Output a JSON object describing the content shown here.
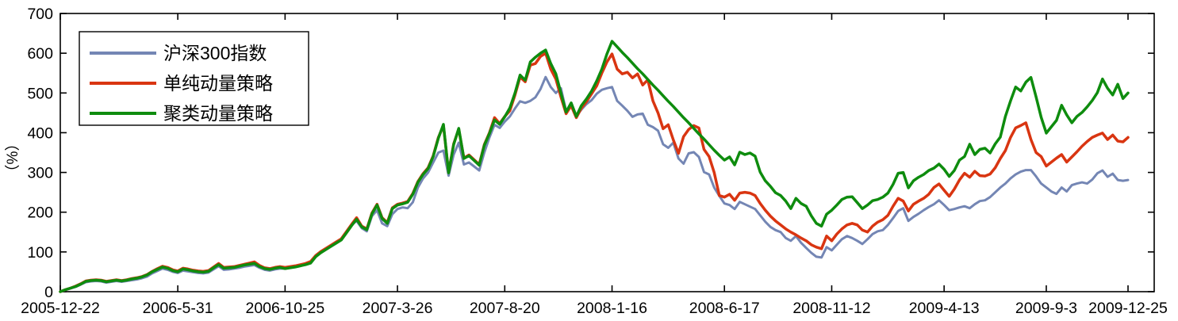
{
  "chart_data": {
    "type": "line",
    "title": "",
    "ylabel": "（%）",
    "xlabel": "",
    "ylim": [
      0,
      700
    ],
    "yticks": [
      0,
      100,
      200,
      300,
      400,
      500,
      600,
      700
    ],
    "grid": false,
    "box": true,
    "legend_position": "top-left",
    "x_tick_labels": [
      "2005-12-22",
      "2006-5-31",
      "2006-10-25",
      "2007-3-26",
      "2007-8-20",
      "2008-1-16",
      "2008-6-17",
      "2008-11-12",
      "2009-4-13",
      "2009-9-3",
      "2009-12-25"
    ],
    "x_tick_weeks": [
      0,
      23,
      44,
      66,
      87,
      108,
      130,
      151,
      173,
      193,
      209
    ],
    "x_total_weeks": 209,
    "axis_color": "#000000",
    "series": [
      {
        "name": "沪深300指数",
        "color": "#7486B4",
        "line_width": 3,
        "values": [
          0,
          4,
          8,
          12,
          18,
          24,
          26,
          27,
          26,
          23,
          25,
          27,
          25,
          27,
          29,
          31,
          34,
          38,
          46,
          52,
          58,
          55,
          50,
          47,
          53,
          51,
          49,
          47,
          46,
          48,
          56,
          64,
          55,
          56,
          58,
          60,
          63,
          65,
          67,
          60,
          55,
          53,
          56,
          58,
          58,
          60,
          62,
          65,
          68,
          73,
          90,
          100,
          108,
          116,
          124,
          132,
          150,
          168,
          178,
          160,
          152,
          190,
          205,
          172,
          165,
          195,
          208,
          212,
          210,
          225,
          262,
          285,
          300,
          325,
          350,
          355,
          292,
          345,
          375,
          320,
          325,
          315,
          305,
          350,
          388,
          420,
          412,
          428,
          441,
          461,
          479,
          475,
          480,
          489,
          510,
          540,
          515,
          500,
          512,
          455,
          470,
          442,
          458,
          472,
          482,
          498,
          508,
          512,
          515,
          480,
          468,
          455,
          440,
          446,
          448,
          420,
          414,
          405,
          371,
          362,
          375,
          335,
          322,
          348,
          351,
          339,
          301,
          295,
          262,
          241,
          222,
          218,
          208,
          226,
          220,
          214,
          208,
          192,
          176,
          163,
          155,
          150,
          135,
          128,
          140,
          123,
          110,
          98,
          88,
          86,
          112,
          104,
          118,
          132,
          140,
          135,
          128,
          120,
          132,
          145,
          152,
          155,
          168,
          185,
          203,
          210,
          178,
          188,
          196,
          205,
          213,
          220,
          230,
          218,
          205,
          208,
          212,
          215,
          210,
          220,
          228,
          230,
          238,
          250,
          262,
          272,
          285,
          295,
          302,
          306,
          306,
          290,
          272,
          262,
          252,
          246,
          262,
          252,
          268,
          272,
          275,
          272,
          282,
          298,
          305,
          289,
          297,
          281,
          279,
          281
        ]
      },
      {
        "name": "单纯动量策略",
        "color": "#D93511",
        "line_width": 3.5,
        "values": [
          0,
          5,
          9,
          14,
          20,
          27,
          29,
          30,
          29,
          26,
          28,
          30,
          28,
          30,
          33,
          35,
          38,
          43,
          51,
          58,
          64,
          61,
          55,
          52,
          59,
          57,
          54,
          52,
          51,
          53,
          62,
          71,
          61,
          62,
          63,
          66,
          69,
          72,
          75,
          66,
          60,
          58,
          61,
          63,
          61,
          63,
          65,
          68,
          71,
          76,
          91,
          101,
          109,
          117,
          125,
          133,
          151,
          169,
          186,
          165,
          158,
          198,
          220,
          186,
          174,
          211,
          220,
          223,
          227,
          247,
          277,
          297,
          312,
          342,
          388,
          418,
          300,
          372,
          409,
          336,
          344,
          332,
          320,
          370,
          400,
          438,
          423,
          441,
          455,
          495,
          540,
          528,
          570,
          574,
          592,
          600,
          560,
          535,
          490,
          448,
          468,
          438,
          462,
          478,
          498,
          518,
          550,
          578,
          598,
          560,
          548,
          552,
          538,
          548,
          520,
          533,
          480,
          450,
          410,
          420,
          382,
          348,
          390,
          408,
          418,
          412,
          358,
          340,
          300,
          242,
          238,
          245,
          230,
          248,
          250,
          248,
          242,
          222,
          205,
          190,
          178,
          168,
          158,
          150,
          143,
          135,
          128,
          118,
          112,
          108,
          140,
          128,
          145,
          158,
          168,
          172,
          168,
          155,
          150,
          165,
          175,
          181,
          192,
          215,
          235,
          228,
          203,
          220,
          228,
          235,
          245,
          262,
          271,
          255,
          240,
          258,
          281,
          298,
          288,
          303,
          292,
          291,
          296,
          312,
          335,
          355,
          388,
          412,
          418,
          425,
          383,
          350,
          340,
          316,
          326,
          336,
          345,
          326,
          339,
          352,
          366,
          378,
          388,
          394,
          399,
          383,
          394,
          379,
          377,
          388
        ]
      },
      {
        "name": "聚类动量策略",
        "color": "#0E8C0E",
        "line_width": 3.5,
        "values": [
          0,
          5,
          9,
          13,
          19,
          26,
          28,
          29,
          28,
          25,
          27,
          29,
          27,
          29,
          32,
          34,
          37,
          42,
          50,
          56,
          62,
          59,
          53,
          50,
          57,
          55,
          52,
          50,
          49,
          51,
          60,
          68,
          59,
          60,
          61,
          64,
          67,
          69,
          71,
          63,
          58,
          56,
          59,
          61,
          58,
          60,
          62,
          65,
          68,
          72,
          88,
          98,
          106,
          114,
          122,
          130,
          148,
          166,
          182,
          163,
          156,
          196,
          218,
          184,
          172,
          209,
          218,
          221,
          225,
          245,
          275,
          295,
          310,
          340,
          386,
          421,
          299,
          370,
          411,
          335,
          342,
          330,
          318,
          368,
          398,
          432,
          421,
          440,
          462,
          500,
          545,
          532,
          578,
          590,
          600,
          608,
          574,
          548,
          500,
          452,
          475,
          441,
          468,
          485,
          505,
          530,
          560,
          598,
          630,
          616,
          602,
          589,
          575,
          561,
          548,
          534,
          520,
          507,
          493,
          479,
          466,
          452,
          438,
          425,
          411,
          397,
          384,
          370,
          356,
          343,
          331,
          339,
          319,
          351,
          345,
          349,
          341,
          301,
          279,
          265,
          249,
          242,
          228,
          209,
          235,
          222,
          215,
          191,
          172,
          165,
          195,
          205,
          218,
          232,
          238,
          239,
          224,
          209,
          218,
          229,
          232,
          238,
          248,
          270,
          298,
          300,
          261,
          279,
          288,
          295,
          305,
          311,
          321,
          308,
          290,
          305,
          331,
          340,
          371,
          345,
          358,
          361,
          349,
          372,
          389,
          441,
          480,
          515,
          505,
          527,
          539,
          490,
          439,
          399,
          415,
          431,
          469,
          445,
          425,
          441,
          451,
          465,
          481,
          501,
          535,
          512,
          495,
          522,
          486,
          500
        ]
      }
    ],
    "legend": {
      "entries": [
        "沪深300指数",
        "单纯动量策略",
        "聚类动量策略"
      ]
    }
  }
}
